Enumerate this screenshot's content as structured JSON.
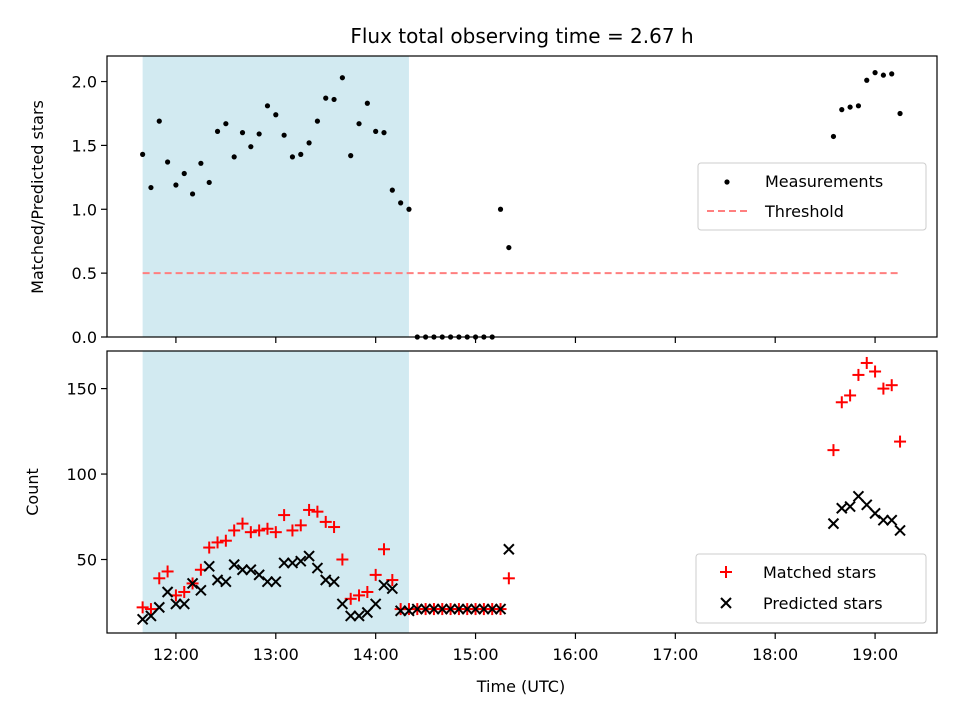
{
  "title": "Flux total observing time = 2.67 h",
  "colors": {
    "shade": "#add8e6",
    "measurement": "#000000",
    "threshold": "#ff7f7f",
    "matched": "#ff0000",
    "predicted": "#000000"
  },
  "chart_data": [
    {
      "type": "scatter",
      "ylabel": "Matched/Predicted stars",
      "ylim": [
        0,
        2.2
      ],
      "yticks": [
        "0.0",
        "0.5",
        "1.0",
        "1.5",
        "2.0"
      ],
      "xlim_hours": [
        11.31,
        19.62
      ],
      "shaded_interval": [
        "11:40",
        "14:20"
      ],
      "legend": {
        "placement": "center-right",
        "entries": [
          "Measurements",
          "Threshold"
        ]
      },
      "threshold": {
        "name": "Threshold",
        "value": 0.5,
        "x": [
          "11:40",
          "19:15"
        ]
      },
      "series": [
        {
          "name": "Measurements",
          "marker": "dot",
          "x": [
            "11:40",
            "11:45",
            "11:50",
            "11:55",
            "12:00",
            "12:05",
            "12:10",
            "12:15",
            "12:20",
            "12:25",
            "12:30",
            "12:35",
            "12:40",
            "12:45",
            "12:50",
            "12:55",
            "13:00",
            "13:05",
            "13:10",
            "13:15",
            "13:20",
            "13:25",
            "13:30",
            "13:35",
            "13:40",
            "13:45",
            "13:50",
            "13:55",
            "14:00",
            "14:05",
            "14:10",
            "14:15",
            "14:20",
            "14:25",
            "14:30",
            "14:35",
            "14:40",
            "14:45",
            "14:50",
            "14:55",
            "15:00",
            "15:05",
            "15:10",
            "15:15",
            "15:20",
            "18:35",
            "18:40",
            "18:45",
            "18:50",
            "18:55",
            "19:00",
            "19:05",
            "19:10",
            "19:15"
          ],
          "y": [
            1.43,
            1.17,
            1.69,
            1.37,
            1.19,
            1.28,
            1.12,
            1.36,
            1.21,
            1.61,
            1.67,
            1.41,
            1.6,
            1.49,
            1.59,
            1.81,
            1.74,
            1.58,
            1.41,
            1.43,
            1.52,
            1.69,
            1.87,
            1.86,
            2.03,
            1.42,
            1.67,
            1.83,
            1.61,
            1.6,
            1.15,
            1.05,
            1.0,
            0.0,
            0.0,
            0.0,
            0.0,
            0.0,
            0.0,
            0.0,
            0.0,
            0.0,
            0.0,
            1.0,
            0.7,
            1.57,
            1.78,
            1.8,
            1.81,
            2.01,
            2.07,
            2.05,
            2.06,
            1.75
          ]
        }
      ]
    },
    {
      "type": "scatter",
      "xlabel": "Time (UTC)",
      "ylabel": "Count",
      "ylim": [
        7,
        172
      ],
      "yticks": [
        "50",
        "100",
        "150"
      ],
      "xlim_hours": [
        11.31,
        19.62
      ],
      "xticks": [
        "12:00",
        "13:00",
        "14:00",
        "15:00",
        "16:00",
        "17:00",
        "18:00",
        "19:00"
      ],
      "shaded_interval": [
        "11:40",
        "14:20"
      ],
      "legend": {
        "placement": "bottom-right",
        "entries": [
          "Matched stars",
          "Predicted stars"
        ]
      },
      "series": [
        {
          "name": "Matched stars",
          "marker": "plus",
          "x": [
            "11:40",
            "11:45",
            "11:50",
            "11:55",
            "12:00",
            "12:05",
            "12:10",
            "12:15",
            "12:20",
            "12:25",
            "12:30",
            "12:35",
            "12:40",
            "12:45",
            "12:50",
            "12:55",
            "13:00",
            "13:05",
            "13:10",
            "13:15",
            "13:20",
            "13:25",
            "13:30",
            "13:35",
            "13:40",
            "13:45",
            "13:50",
            "13:55",
            "14:00",
            "14:05",
            "14:10",
            "14:15",
            "14:20",
            "14:25",
            "14:30",
            "14:35",
            "14:40",
            "14:45",
            "14:50",
            "14:55",
            "15:00",
            "15:05",
            "15:10",
            "15:15",
            "15:20",
            "18:35",
            "18:40",
            "18:45",
            "18:50",
            "18:55",
            "19:00",
            "19:05",
            "19:10",
            "19:15"
          ],
          "y": [
            22,
            21,
            39,
            43,
            29,
            31,
            36,
            44,
            57,
            60,
            61,
            67,
            71,
            66,
            67,
            68,
            66,
            76,
            67,
            70,
            79,
            78,
            72,
            69,
            50,
            27,
            29,
            31,
            41,
            56,
            38,
            21,
            21,
            21,
            21,
            21,
            21,
            21,
            21,
            21,
            21,
            21,
            21,
            21,
            39,
            114,
            142,
            146,
            158,
            165,
            160,
            150,
            152,
            119
          ]
        },
        {
          "name": "Predicted stars",
          "marker": "x",
          "x": [
            "11:40",
            "11:45",
            "11:50",
            "11:55",
            "12:00",
            "12:05",
            "12:10",
            "12:15",
            "12:20",
            "12:25",
            "12:30",
            "12:35",
            "12:40",
            "12:45",
            "12:50",
            "12:55",
            "13:00",
            "13:05",
            "13:10",
            "13:15",
            "13:20",
            "13:25",
            "13:30",
            "13:35",
            "13:40",
            "13:45",
            "13:50",
            "13:55",
            "14:00",
            "14:05",
            "14:10",
            "14:15",
            "14:20",
            "14:25",
            "14:30",
            "14:35",
            "14:40",
            "14:45",
            "14:50",
            "14:55",
            "15:00",
            "15:05",
            "15:10",
            "15:15",
            "15:20",
            "18:35",
            "18:40",
            "18:45",
            "18:50",
            "18:55",
            "19:00",
            "19:05",
            "19:10",
            "19:15"
          ],
          "y": [
            15,
            17,
            22,
            31,
            24,
            24,
            36,
            32,
            46,
            38,
            37,
            47,
            44,
            44,
            41,
            37,
            37,
            48,
            48,
            49,
            52,
            45,
            38,
            37,
            24,
            17,
            17,
            19,
            24,
            35,
            33,
            20,
            20,
            21,
            21,
            21,
            21,
            21,
            21,
            21,
            21,
            21,
            21,
            21,
            56,
            71,
            80,
            81,
            87,
            82,
            77,
            73,
            73,
            67
          ]
        }
      ]
    }
  ]
}
